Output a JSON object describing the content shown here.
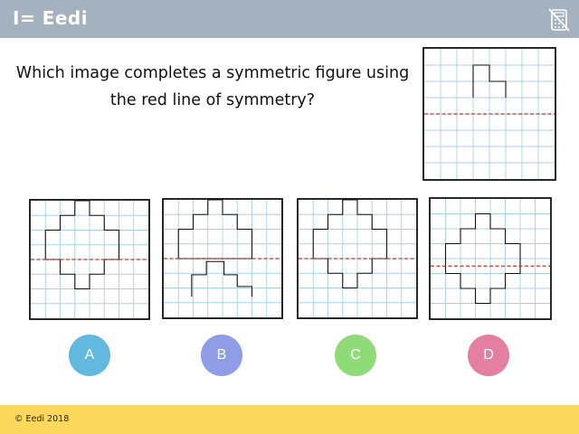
{
  "header": {
    "logo_text": "I= Eedi",
    "bg_color": "#a4b2bf",
    "icon": "calculator-crossed-icon"
  },
  "question": {
    "line1": "Which image completes a symmetric figure using",
    "line2": "the red line of symmetry?"
  },
  "colors": {
    "grid_line": "#a8d0ec",
    "symmetry_line": "#c0392b",
    "shape_outline": "#111111"
  },
  "answers": [
    {
      "label": "A",
      "color": "#63b8e0"
    },
    {
      "label": "B",
      "color": "#8f9de6"
    },
    {
      "label": "C",
      "color": "#8edb77"
    },
    {
      "label": "D",
      "color": "#e57fa1"
    }
  ],
  "footer": {
    "text": "© Eedi 2018",
    "bg_color": "#fcd85c"
  }
}
